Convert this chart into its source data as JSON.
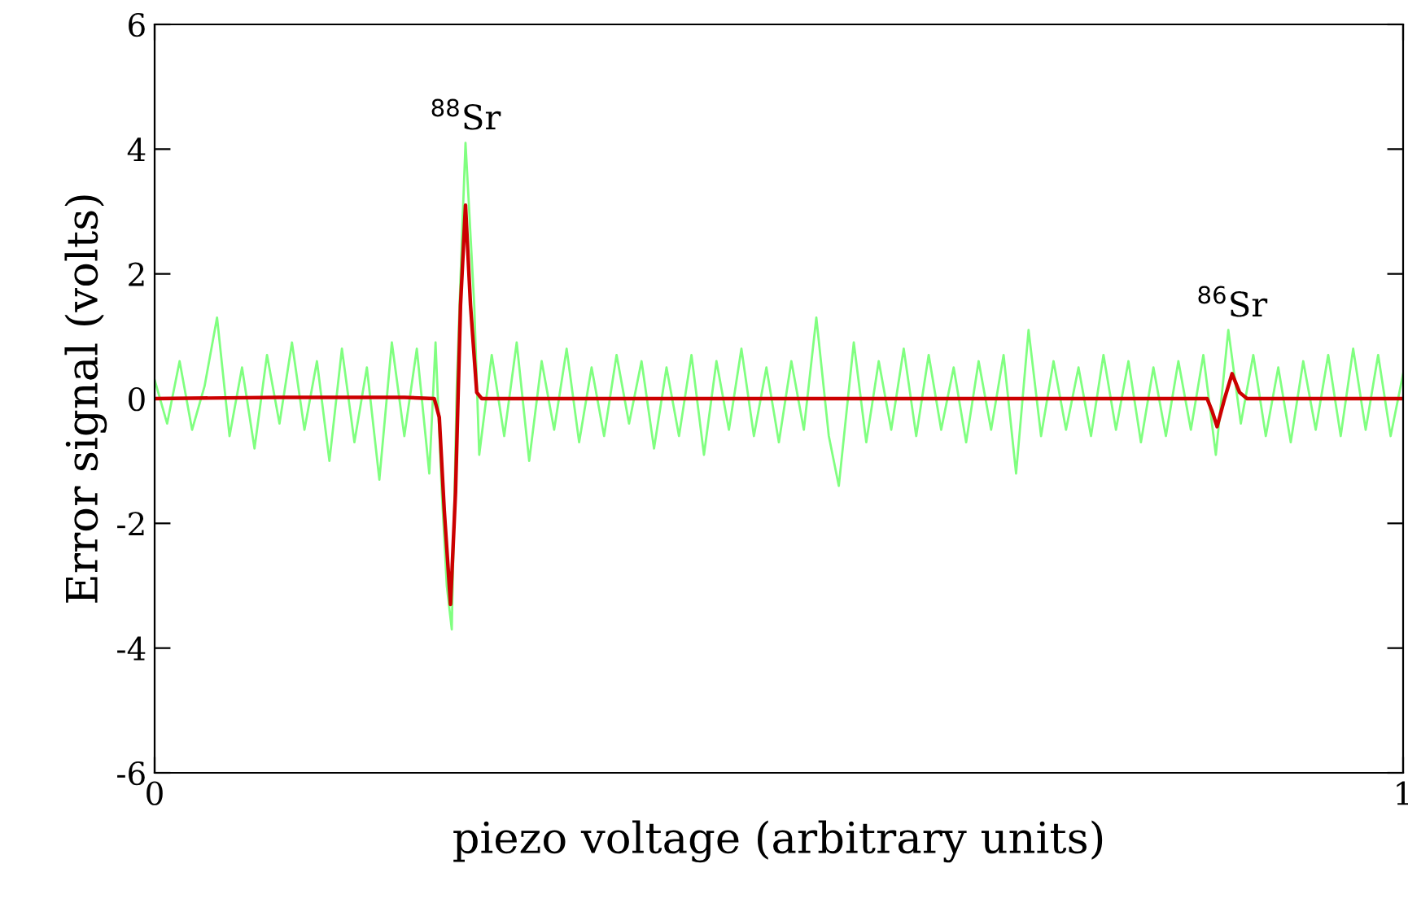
{
  "chart_data": {
    "type": "line",
    "xlabel": "piezo voltage (arbitrary units)",
    "ylabel": "Error signal (volts)",
    "xlim": [
      0,
      1
    ],
    "xticks": [
      0,
      1
    ],
    "ylim": [
      -6,
      6
    ],
    "yticks": [
      -6,
      -4,
      -2,
      0,
      2,
      4,
      6
    ],
    "grid": false,
    "legend": false,
    "annotations": [
      {
        "text": "$^{88}$Sr",
        "x": 0.249,
        "y": 4.2
      },
      {
        "text": "$^{86}$Sr",
        "x": 0.863,
        "y": 1.2
      }
    ],
    "series": [
      {
        "color": "#80ff80",
        "x": [
          0,
          0.01,
          0.02,
          0.03,
          0.04,
          0.05,
          0.06,
          0.07,
          0.08,
          0.09,
          0.1,
          0.11,
          0.12,
          0.13,
          0.14,
          0.15,
          0.16,
          0.17,
          0.18,
          0.19,
          0.2,
          0.21,
          0.22,
          0.225,
          0.23,
          0.234,
          0.238,
          0.242,
          0.246,
          0.249,
          0.252,
          0.256,
          0.26,
          0.27,
          0.28,
          0.29,
          0.3,
          0.31,
          0.32,
          0.33,
          0.34,
          0.35,
          0.36,
          0.37,
          0.38,
          0.39,
          0.4,
          0.41,
          0.42,
          0.43,
          0.44,
          0.45,
          0.46,
          0.47,
          0.48,
          0.49,
          0.5,
          0.51,
          0.52,
          0.53,
          0.54,
          0.548,
          0.56,
          0.57,
          0.58,
          0.59,
          0.6,
          0.61,
          0.62,
          0.63,
          0.64,
          0.65,
          0.66,
          0.67,
          0.68,
          0.69,
          0.7,
          0.71,
          0.72,
          0.73,
          0.74,
          0.75,
          0.76,
          0.77,
          0.78,
          0.79,
          0.8,
          0.81,
          0.82,
          0.83,
          0.84,
          0.85,
          0.86,
          0.87,
          0.88,
          0.89,
          0.9,
          0.91,
          0.92,
          0.93,
          0.94,
          0.95,
          0.96,
          0.97,
          0.98,
          0.99,
          1.0
        ],
        "values": [
          0.3,
          -0.4,
          0.6,
          -0.5,
          0.2,
          1.3,
          -0.6,
          0.5,
          -0.8,
          0.7,
          -0.4,
          0.9,
          -0.5,
          0.6,
          -1.0,
          0.8,
          -0.7,
          0.5,
          -1.3,
          0.9,
          -0.6,
          0.8,
          -1.2,
          0.9,
          -1.5,
          -3.0,
          -3.7,
          0.2,
          2.5,
          4.1,
          3.0,
          1.5,
          -0.9,
          0.7,
          -0.6,
          0.9,
          -1.0,
          0.6,
          -0.5,
          0.8,
          -0.7,
          0.5,
          -0.6,
          0.7,
          -0.4,
          0.6,
          -0.8,
          0.5,
          -0.6,
          0.7,
          -0.9,
          0.6,
          -0.5,
          0.8,
          -0.6,
          0.5,
          -0.7,
          0.6,
          -0.5,
          1.3,
          -0.6,
          -1.4,
          0.9,
          -0.7,
          0.6,
          -0.5,
          0.8,
          -0.6,
          0.7,
          -0.5,
          0.5,
          -0.7,
          0.6,
          -0.5,
          0.7,
          -1.2,
          1.1,
          -0.6,
          0.6,
          -0.5,
          0.5,
          -0.6,
          0.7,
          -0.5,
          0.6,
          -0.7,
          0.5,
          -0.6,
          0.6,
          -0.5,
          0.7,
          -0.9,
          1.1,
          -0.4,
          0.7,
          -0.6,
          0.5,
          -0.7,
          0.6,
          -0.5,
          0.7,
          -0.6,
          0.8,
          -0.5,
          0.7,
          -0.6,
          0.4
        ]
      },
      {
        "color": "#cc0000",
        "x": [
          0,
          0.1,
          0.2,
          0.224,
          0.228,
          0.232,
          0.237,
          0.241,
          0.245,
          0.249,
          0.253,
          0.258,
          0.262,
          0.4,
          0.6,
          0.8,
          0.843,
          0.847,
          0.851,
          0.857,
          0.863,
          0.869,
          0.875,
          1.0
        ],
        "values": [
          0,
          0.02,
          0.02,
          0,
          -0.3,
          -1.8,
          -3.3,
          -1.5,
          1.5,
          3.1,
          1.5,
          0.1,
          0,
          0,
          0,
          0,
          0,
          -0.2,
          -0.45,
          0,
          0.4,
          0.1,
          0,
          0
        ]
      }
    ]
  }
}
